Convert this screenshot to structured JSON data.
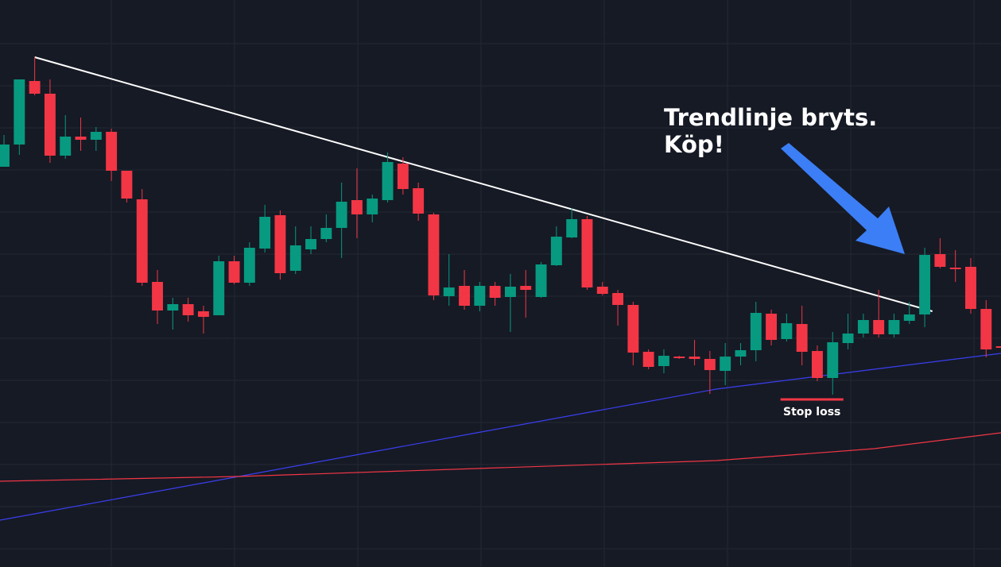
{
  "chart_data": {
    "type": "candlestick",
    "xlim": [
      -0.26,
      64.97
    ],
    "ylim": [
      0,
      71.4
    ],
    "up_color": "#089981",
    "down_color": "#f23645",
    "open": [
      50.4,
      53.2,
      61.2,
      59.6,
      51.8,
      54.2,
      53.8,
      54.8,
      49.9,
      46.3,
      35.9,
      32.3,
      33.1,
      32.2,
      31.7,
      38.5,
      35.8,
      40.1,
      44.3,
      37.3,
      40.0,
      41.3,
      42.7,
      46.2,
      44.4,
      46.2,
      50.8,
      47.7,
      44.4,
      34.1,
      35.4,
      32.9,
      35.4,
      34.0,
      35.4,
      34.0,
      38.0,
      41.5,
      43.8,
      35.3,
      34.5,
      33.0,
      27.1,
      25.3,
      26.5,
      26.5,
      26.2,
      24.7,
      26.5,
      27.3,
      31.9,
      28.7,
      30.6,
      27.2,
      23.8,
      28.2,
      29.4,
      31.1,
      29.3,
      31.0,
      31.8,
      39.4,
      37.7,
      37.8,
      32.5,
      27.8
    ],
    "high": [
      54.4,
      61.4,
      64.2,
      61.4,
      56.9,
      56.6,
      55.4,
      55.2,
      49.9,
      47.6,
      37.4,
      33.9,
      33.9,
      32.9,
      39.2,
      39.2,
      40.9,
      45.6,
      44.9,
      42.9,
      42.9,
      44.4,
      48.4,
      50.2,
      46.9,
      52.2,
      51.6,
      48.4,
      44.6,
      39.4,
      37.4,
      35.9,
      35.9,
      36.9,
      37.4,
      38.4,
      42.9,
      45.2,
      44.2,
      35.9,
      34.9,
      33.4,
      27.4,
      27.4,
      26.6,
      28.6,
      27.2,
      28.2,
      28.2,
      33.4,
      32.4,
      31.9,
      32.9,
      27.9,
      29.6,
      31.9,
      31.9,
      34.9,
      31.9,
      33.4,
      40.2,
      41.4,
      39.9,
      38.9,
      33.6,
      28.9
    ],
    "low": [
      50.4,
      51.9,
      59.4,
      50.9,
      51.4,
      52.4,
      52.4,
      48.6,
      45.9,
      35.4,
      30.6,
      29.9,
      30.9,
      29.4,
      31.7,
      35.6,
      35.4,
      39.6,
      36.2,
      36.9,
      39.4,
      40.9,
      38.9,
      41.4,
      43.4,
      45.9,
      46.9,
      43.6,
      33.6,
      32.9,
      32.4,
      32.2,
      32.9,
      29.6,
      31.4,
      33.9,
      37.9,
      41.4,
      34.9,
      34.2,
      30.4,
      25.4,
      24.9,
      24.4,
      26.2,
      25.4,
      21.8,
      22.9,
      25.4,
      25.9,
      27.9,
      28.4,
      25.4,
      23.4,
      21.7,
      27.4,
      28.9,
      28.9,
      28.9,
      30.6,
      30.2,
      37.6,
      35.9,
      31.9,
      26.4,
      25.9
    ],
    "close": [
      53.2,
      61.4,
      59.6,
      51.8,
      54.2,
      53.8,
      54.8,
      49.9,
      46.4,
      35.8,
      32.3,
      33.1,
      31.7,
      31.5,
      38.5,
      35.8,
      40.2,
      44.1,
      37.0,
      40.5,
      41.3,
      42.7,
      46.0,
      44.4,
      46.4,
      51.0,
      47.6,
      44.5,
      34.2,
      35.2,
      32.9,
      35.4,
      33.9,
      35.3,
      34.9,
      38.1,
      41.6,
      43.8,
      35.2,
      34.4,
      33.0,
      27.0,
      25.2,
      26.6,
      26.3,
      26.2,
      24.8,
      26.5,
      27.3,
      32.0,
      28.6,
      30.7,
      27.1,
      23.8,
      28.3,
      29.4,
      31.1,
      29.3,
      31.1,
      31.8,
      39.3,
      37.8,
      37.5,
      32.5,
      27.4,
      27.6
    ],
    "lines": [
      {
        "color": "#ffffff",
        "x": [
          2,
          60.5
        ],
        "values": [
          64.2,
          32.2
        ]
      },
      {
        "color": "#3a3ff0",
        "x": [
          -0.26,
          15.3,
          30.8,
          46.4,
          56.7,
          64.97
        ],
        "values": [
          5.9,
          11.4,
          16.9,
          22.4,
          24.9,
          26.9
        ]
      },
      {
        "color": "#f23645",
        "x": [
          -0.26,
          15.3,
          30.8,
          46.4,
          56.7,
          64.97
        ],
        "values": [
          10.8,
          11.4,
          12.4,
          13.4,
          14.9,
          16.9
        ]
      }
    ],
    "annotation": [
      "Trendlinje bryts.",
      "Köp!"
    ],
    "stop_loss": {
      "label": "Stop loss",
      "x": [
        50.6,
        54.7
      ],
      "value": 21.1,
      "color": "#f23645"
    }
  }
}
